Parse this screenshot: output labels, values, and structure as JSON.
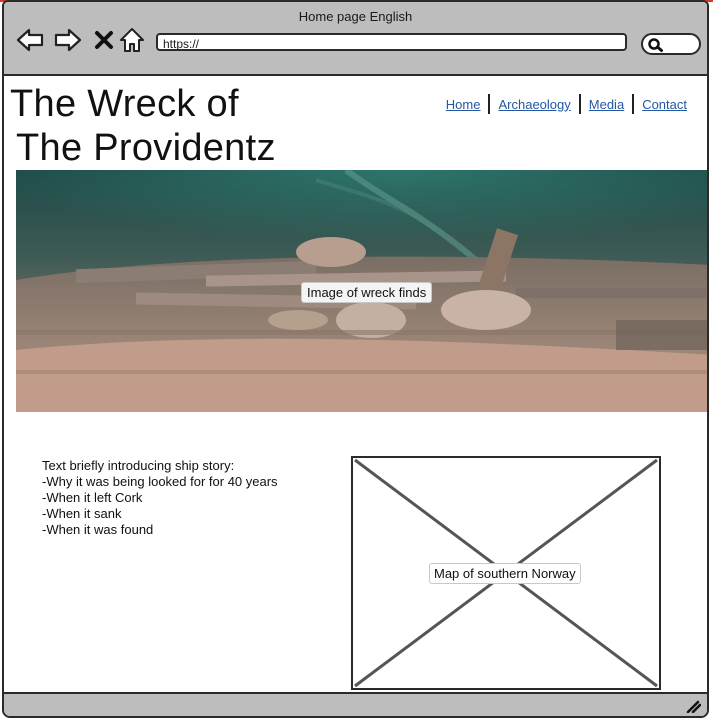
{
  "browser": {
    "title": "Home page English",
    "url": "https://",
    "icons": [
      "back-icon",
      "forward-icon",
      "close-icon",
      "home-icon",
      "search-icon",
      "resize-grip-icon"
    ]
  },
  "page": {
    "title_line1": "The Wreck of",
    "title_line2": "The Providentz",
    "nav": [
      {
        "label": "Home"
      },
      {
        "label": "Archaeology"
      },
      {
        "label": "Media"
      },
      {
        "label": "Contact"
      }
    ],
    "hero_label": "Image of wreck finds",
    "intro_lines": [
      "Text briefly introducing ship story:",
      "-Why it was being looked for for 40 years",
      "-When it left Cork",
      "-When it sank",
      "-When it was found"
    ],
    "map_label": "Map of southern Norway"
  },
  "colors": {
    "chrome": "#bdbdbd",
    "link": "#2457a4",
    "border": "#2a2a2a"
  }
}
